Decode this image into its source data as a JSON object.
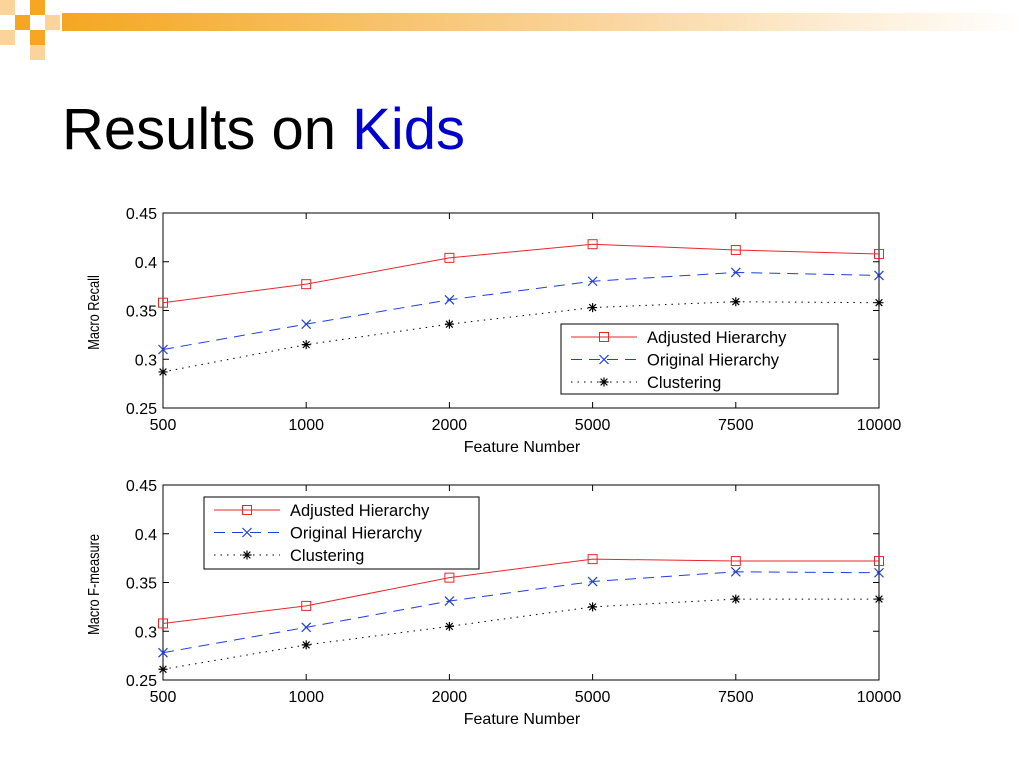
{
  "slide": {
    "title_prefix": "Results on",
    "title_accent": "Kids",
    "accent_color": "#0000cc",
    "decor_color": "#f6a623"
  },
  "chart_data": [
    {
      "type": "line",
      "categories": [
        "500",
        "1000",
        "2000",
        "5000",
        "7500",
        "10000"
      ],
      "xlabel": "Feature Number",
      "ylabel": "Macro Recall",
      "ylim": [
        0.25,
        0.45
      ],
      "yticks": [
        "0.25",
        "0.3",
        "0.35",
        "0.4",
        "0.45"
      ],
      "legend_position": "bottom-right",
      "grid": false,
      "series": [
        {
          "name": "Adjusted Hierarchy",
          "color": "#e8262b",
          "marker": "square",
          "line_style": "solid",
          "values": [
            0.358,
            0.377,
            0.404,
            0.418,
            0.412,
            0.408
          ]
        },
        {
          "name": "Original Hierarchy",
          "color": "#1f3fd8",
          "marker": "x",
          "line_style": "dashed",
          "values": [
            0.31,
            0.336,
            0.361,
            0.38,
            0.389,
            0.386
          ]
        },
        {
          "name": "Clustering",
          "color": "#000000",
          "marker": "star",
          "line_style": "dotted",
          "values": [
            0.287,
            0.315,
            0.336,
            0.353,
            0.359,
            0.358
          ]
        }
      ]
    },
    {
      "type": "line",
      "categories": [
        "500",
        "1000",
        "2000",
        "5000",
        "7500",
        "10000"
      ],
      "xlabel": "Feature Number",
      "ylabel": "Macro F-measure",
      "ylim": [
        0.25,
        0.45
      ],
      "yticks": [
        "0.25",
        "0.3",
        "0.35",
        "0.4",
        "0.45"
      ],
      "legend_position": "top-left",
      "grid": false,
      "series": [
        {
          "name": "Adjusted Hierarchy",
          "color": "#e8262b",
          "marker": "square",
          "line_style": "solid",
          "values": [
            0.308,
            0.326,
            0.355,
            0.374,
            0.372,
            0.372
          ]
        },
        {
          "name": "Original Hierarchy",
          "color": "#1f3fd8",
          "marker": "x",
          "line_style": "dashed",
          "values": [
            0.278,
            0.304,
            0.331,
            0.351,
            0.361,
            0.36
          ]
        },
        {
          "name": "Clustering",
          "color": "#000000",
          "marker": "star",
          "line_style": "dotted",
          "values": [
            0.261,
            0.286,
            0.305,
            0.325,
            0.333,
            0.333
          ]
        }
      ]
    }
  ]
}
